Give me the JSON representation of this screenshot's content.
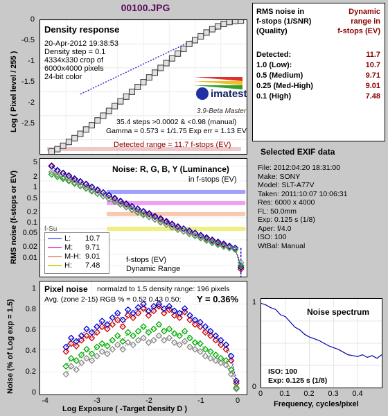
{
  "file_title": "00100.JPG",
  "density": {
    "title": "Density response",
    "info_lines": [
      "20-Apr-2012 19:38:53",
      "Density step = 0.1",
      "4334x330 crop of",
      "6000x4000 pixels",
      "24-bit color"
    ],
    "logo_text": "imatest",
    "version": "3.9-Beta  Master",
    "stats_lines": [
      "35.4 steps >0.0002 & <0.98 (manual)",
      "Gamma = 0.573 = 1/1.75  Exp err = 1.13 EV"
    ],
    "detected_range": "Detected range = 11.7 f-stops (EV)",
    "ylabel": "Log ( Pixel level / 255 )",
    "yticks": [
      "0",
      "-0.5",
      "-1",
      "-1.5",
      "-2",
      "-2.5"
    ]
  },
  "noise": {
    "title": "Noise: R, G, B, Y (Luminance)",
    "subtitle": "in f-stops (EV)",
    "ylabel": "RMS noise (f-stops or EV)",
    "yticks": [
      "5",
      "2",
      "1",
      "0.5",
      "0.2",
      "0.1",
      "0.05",
      "0.02",
      "0.01"
    ],
    "legend": [
      {
        "label": "L:",
        "value": "10.7",
        "color": "#8080ff"
      },
      {
        "label": "M:",
        "value": "9.71",
        "color": "#e060e0"
      },
      {
        "label": "M-H:",
        "value": "9.01",
        "color": "#f0a080"
      },
      {
        "label": "H:",
        "value": "7.48",
        "color": "#d8d820"
      }
    ],
    "legend_caption": [
      "f-stops (EV)",
      "Dynamic Range"
    ],
    "partial_label": "f-Su"
  },
  "pixel_noise": {
    "title": "Pixel noise",
    "norm_text": "normalzd to 1.5 density range: 196 pixels",
    "avg_text": "Avg. (zone 2-15) RGB % = 0.52  0.43  0.50;",
    "y_text": "Y = 0.36%",
    "ylabel": "Noise (% of Log exp = 1.5)",
    "yticks": [
      "1",
      "0.8",
      "0.6",
      "0.4",
      "0.2",
      "0"
    ],
    "xticks": [
      "-4",
      "-3",
      "-2",
      "-1",
      "0"
    ],
    "xlabel": "Log Exposure ( -Target Density D )"
  },
  "rms_table": {
    "head_left": [
      "RMS noise in",
      "f-stops (1/SNR)",
      "(Quality)"
    ],
    "head_right": [
      "Dynamic",
      "range in",
      "f-stops (EV)"
    ],
    "rows": [
      {
        "label": "Detected:",
        "value": "11.7"
      },
      {
        "label": "1.0   (Low):",
        "value": "10.7"
      },
      {
        "label": "0.5   (Medium)",
        "value": "9.71"
      },
      {
        "label": "0.25 (Med-High)",
        "value": "9.01"
      },
      {
        "label": "0.1   (High)",
        "value": "7.48"
      }
    ]
  },
  "exif": {
    "title": "Selected EXIF data",
    "lines": [
      "File:  2012:04:20 18:31:00",
      "Make:  SONY",
      "Model: SLT-A77V",
      "Taken:  2011:10:07 10:06:31",
      "Res:   6000 x 4000",
      "FL:  50.0mm",
      "Exp:   0.125 s   (1/8)",
      "Aper:  f/4.0",
      "ISO:   100",
      "WtBal: Manual"
    ]
  },
  "spectrum": {
    "title": "Noise spectrum",
    "iso_text": "ISO:   100",
    "exp_text": "Exp:   0.125 s    (1/8)",
    "yticks": [
      "1",
      "0"
    ],
    "xticks": [
      "0",
      "0.1",
      "0.2",
      "0.3",
      "0.4"
    ],
    "xlabel": "Frequency, cycles/pixel"
  },
  "chart_data": [
    {
      "type": "scatter",
      "title": "Density response",
      "ylabel": "Log ( Pixel level / 255 )",
      "xlim": [
        -3.7,
        -0.1
      ],
      "ylim": [
        -2.8,
        0
      ],
      "x": [
        -3.5,
        -3.4,
        -3.3,
        -3.2,
        -3.1,
        -3.0,
        -2.9,
        -2.8,
        -2.7,
        -2.6,
        -2.5,
        -2.4,
        -2.3,
        -2.2,
        -2.1,
        -2.0,
        -1.9,
        -1.8,
        -1.7,
        -1.6,
        -1.5,
        -1.4,
        -1.3,
        -1.2,
        -1.1,
        -1.0,
        -0.9,
        -0.8,
        -0.7,
        -0.6,
        -0.5,
        -0.4,
        -0.3,
        -0.2
      ],
      "series": [
        {
          "values": [
            -2.75,
            -2.7,
            -2.63,
            -2.55,
            -2.47,
            -2.38,
            -2.29,
            -2.2,
            -2.1,
            -2.0,
            -1.9,
            -1.8,
            -1.7,
            -1.6,
            -1.5,
            -1.4,
            -1.3,
            -1.2,
            -1.1,
            -1.0,
            -0.9,
            -0.8,
            -0.7,
            -0.6,
            -0.5,
            -0.42,
            -0.34,
            -0.26,
            -0.19,
            -0.13,
            -0.08,
            -0.04,
            -0.02,
            -0.01
          ]
        }
      ],
      "fit_line": {
        "x": [
          -3.0,
          -0.3
        ],
        "y": [
          -1.55,
          0
        ]
      }
    },
    {
      "type": "scatter",
      "title": "Noise: R, G, B, Y (Luminance)",
      "ylabel": "RMS noise (f-stops or EV)",
      "yscale": "log",
      "ylim": [
        0.005,
        8
      ],
      "xlim": [
        -3.7,
        -0.1
      ],
      "x": [
        -3.5,
        -3.4,
        -3.3,
        -3.2,
        -3.1,
        -3.0,
        -2.9,
        -2.8,
        -2.7,
        -2.6,
        -2.5,
        -2.4,
        -2.3,
        -2.2,
        -2.1,
        -2.0,
        -1.9,
        -1.8,
        -1.7,
        -1.6,
        -1.5,
        -1.4,
        -1.3,
        -1.2,
        -1.1,
        -1.0,
        -0.9,
        -0.8,
        -0.7,
        -0.6,
        -0.5,
        -0.4,
        -0.3,
        -0.2
      ],
      "series": [
        {
          "color": "#cc0000",
          "values": [
            5.2,
            3.8,
            3.2,
            2.7,
            2.2,
            1.9,
            1.6,
            1.35,
            1.1,
            0.95,
            0.8,
            0.65,
            0.55,
            0.46,
            0.4,
            0.34,
            0.29,
            0.25,
            0.21,
            0.18,
            0.15,
            0.13,
            0.11,
            0.1,
            0.085,
            0.075,
            0.065,
            0.055,
            0.048,
            0.042,
            0.037,
            0.033,
            0.03,
            0.008
          ]
        },
        {
          "color": "#00aa00",
          "values": [
            3.0,
            2.6,
            2.3,
            2.0,
            1.7,
            1.45,
            1.25,
            1.05,
            0.9,
            0.77,
            0.65,
            0.55,
            0.46,
            0.39,
            0.33,
            0.28,
            0.24,
            0.21,
            0.18,
            0.15,
            0.13,
            0.11,
            0.095,
            0.085,
            0.073,
            0.064,
            0.056,
            0.048,
            0.042,
            0.037,
            0.033,
            0.03,
            0.027,
            0.01
          ]
        },
        {
          "color": "#0000cc",
          "values": [
            5.0,
            3.9,
            3.3,
            2.8,
            2.3,
            1.95,
            1.65,
            1.38,
            1.15,
            0.97,
            0.82,
            0.68,
            0.57,
            0.48,
            0.41,
            0.35,
            0.3,
            0.26,
            0.22,
            0.19,
            0.16,
            0.135,
            0.115,
            0.1,
            0.088,
            0.077,
            0.067,
            0.058,
            0.05,
            0.044,
            0.039,
            0.034,
            0.03,
            0.009
          ]
        },
        {
          "color": "#888888",
          "values": [
            3.5,
            2.9,
            2.5,
            2.1,
            1.8,
            1.5,
            1.3,
            1.1,
            0.92,
            0.78,
            0.66,
            0.56,
            0.47,
            0.4,
            0.34,
            0.29,
            0.25,
            0.21,
            0.18,
            0.155,
            0.13,
            0.11,
            0.097,
            0.085,
            0.075,
            0.066,
            0.058,
            0.05,
            0.044,
            0.039,
            0.034,
            0.031,
            0.028,
            0.012
          ]
        }
      ],
      "hlines": [
        {
          "value": 1.0,
          "color": "#a0a0ff"
        },
        {
          "value": 0.5,
          "color": "#f0a0f0"
        },
        {
          "value": 0.25,
          "color": "#f8c8b0"
        },
        {
          "value": 0.1,
          "color": "#f0f080"
        }
      ]
    },
    {
      "type": "scatter",
      "title": "Pixel noise",
      "ylabel": "Noise (% of Log exp = 1.5)",
      "xlabel": "Log Exposure ( -Target Density D )",
      "xlim": [
        -4,
        0
      ],
      "ylim": [
        0,
        1
      ],
      "x": [
        -3.5,
        -3.4,
        -3.3,
        -3.2,
        -3.1,
        -3.0,
        -2.9,
        -2.8,
        -2.7,
        -2.6,
        -2.5,
        -2.4,
        -2.3,
        -2.2,
        -2.1,
        -2.0,
        -1.9,
        -1.8,
        -1.7,
        -1.6,
        -1.5,
        -1.4,
        -1.3,
        -1.2,
        -1.1,
        -1.0,
        -0.9,
        -0.8,
        -0.7,
        -0.6,
        -0.5,
        -0.4,
        -0.3,
        -0.2
      ],
      "series": [
        {
          "color": "#cc0000",
          "values": [
            0.38,
            0.45,
            0.43,
            0.48,
            0.52,
            0.5,
            0.55,
            0.6,
            0.58,
            0.62,
            0.66,
            0.6,
            0.7,
            0.68,
            0.72,
            0.76,
            0.7,
            0.74,
            0.78,
            0.72,
            0.75,
            0.7,
            0.68,
            0.73,
            0.66,
            0.62,
            0.6,
            0.55,
            0.52,
            0.48,
            0.44,
            0.4,
            0.3,
            0.1
          ]
        },
        {
          "color": "#00aa00",
          "values": [
            0.25,
            0.32,
            0.3,
            0.35,
            0.4,
            0.36,
            0.42,
            0.45,
            0.43,
            0.48,
            0.52,
            0.47,
            0.55,
            0.52,
            0.56,
            0.6,
            0.55,
            0.58,
            0.62,
            0.56,
            0.58,
            0.54,
            0.52,
            0.56,
            0.5,
            0.46,
            0.45,
            0.4,
            0.38,
            0.35,
            0.32,
            0.3,
            0.22,
            0.06
          ]
        },
        {
          "color": "#0000cc",
          "values": [
            0.42,
            0.5,
            0.47,
            0.52,
            0.58,
            0.55,
            0.6,
            0.65,
            0.62,
            0.68,
            0.72,
            0.66,
            0.75,
            0.72,
            0.77,
            0.8,
            0.74,
            0.78,
            0.8,
            0.76,
            0.78,
            0.74,
            0.72,
            0.76,
            0.7,
            0.66,
            0.64,
            0.6,
            0.56,
            0.52,
            0.48,
            0.44,
            0.34,
            0.12
          ]
        },
        {
          "color": "#888888",
          "values": [
            0.18,
            0.25,
            0.22,
            0.28,
            0.32,
            0.3,
            0.34,
            0.38,
            0.36,
            0.4,
            0.44,
            0.4,
            0.46,
            0.44,
            0.48,
            0.5,
            0.46,
            0.48,
            0.52,
            0.48,
            0.5,
            0.46,
            0.44,
            0.47,
            0.42,
            0.4,
            0.38,
            0.34,
            0.32,
            0.3,
            0.28,
            0.26,
            0.18,
            0.05
          ]
        }
      ]
    },
    {
      "type": "line",
      "title": "Noise spectrum",
      "xlabel": "Frequency, cycles/pixel",
      "xlim": [
        0,
        0.5
      ],
      "ylim": [
        0,
        1
      ],
      "x": [
        0.0,
        0.02,
        0.04,
        0.06,
        0.08,
        0.1,
        0.12,
        0.14,
        0.16,
        0.18,
        0.2,
        0.22,
        0.24,
        0.26,
        0.28,
        0.3,
        0.32,
        0.34,
        0.36,
        0.38,
        0.4,
        0.42,
        0.44,
        0.46,
        0.48,
        0.5
      ],
      "series": [
        {
          "color": "#0000aa",
          "values": [
            0.95,
            0.93,
            0.9,
            0.88,
            0.82,
            0.8,
            0.74,
            0.68,
            0.65,
            0.6,
            0.57,
            0.55,
            0.53,
            0.5,
            0.47,
            0.45,
            0.43,
            0.4,
            0.37,
            0.36,
            0.35,
            0.37,
            0.34,
            0.36,
            0.33,
            0.37
          ]
        }
      ]
    }
  ]
}
